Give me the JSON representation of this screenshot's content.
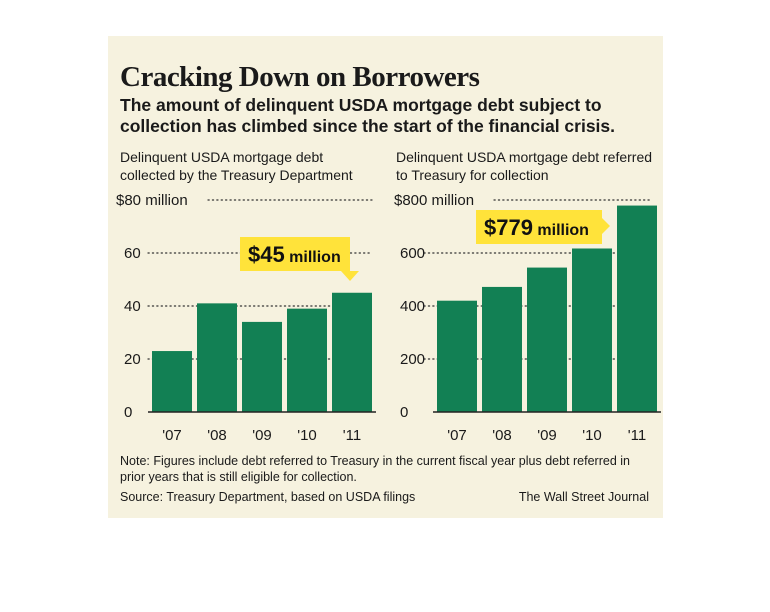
{
  "header": {
    "title": "Cracking Down on Borrowers",
    "subtitle": "The amount of delinquent USDA mortgage debt subject to collection has climbed since the start of the financial crisis."
  },
  "colors": {
    "bar": "#128054",
    "callout": "#ffe33a",
    "background": "#f6f2df"
  },
  "chart_data": [
    {
      "type": "bar",
      "title": "Delinquent USDA mortgage debt collected by the Treasury Department",
      "categories": [
        "'07",
        "'08",
        "'09",
        "'10",
        "'11"
      ],
      "values": [
        23,
        41,
        34,
        39,
        45
      ],
      "unit": "million",
      "ylim": [
        0,
        80
      ],
      "yticks": [
        0,
        20,
        40,
        60,
        80
      ],
      "ytick_labels": [
        "0",
        "20",
        "40",
        "60",
        "$80 million"
      ],
      "grid": true,
      "callout": {
        "category": "'11",
        "amount": "$45",
        "unit": " million"
      }
    },
    {
      "type": "bar",
      "title": "Delinquent USDA mortgage debt referred to Treasury for collection",
      "categories": [
        "'07",
        "'08",
        "'09",
        "'10",
        "'11"
      ],
      "values": [
        420,
        472,
        545,
        617,
        779
      ],
      "unit": "million",
      "ylim": [
        0,
        800
      ],
      "yticks": [
        0,
        200,
        400,
        600,
        800
      ],
      "ytick_labels": [
        "0",
        "200",
        "400",
        "600",
        "$800 million"
      ],
      "grid": true,
      "callout": {
        "category": "'11",
        "amount": "$779",
        "unit": " million"
      }
    }
  ],
  "footer": {
    "note": "Note: Figures include debt referred to Treasury in the current fiscal year plus debt referred in prior years that is still eligible for collection.",
    "source": "Source: Treasury Department, based on USDA filings",
    "credit": "The Wall Street Journal"
  }
}
